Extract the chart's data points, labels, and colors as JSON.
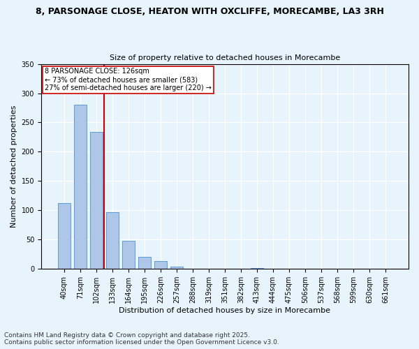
{
  "title": "8, PARSONAGE CLOSE, HEATON WITH OXCLIFFE, MORECAMBE, LA3 3RH",
  "subtitle": "Size of property relative to detached houses in Morecambe",
  "xlabel": "Distribution of detached houses by size in Morecambe",
  "ylabel": "Number of detached properties",
  "categories": [
    "40sqm",
    "71sqm",
    "102sqm",
    "133sqm",
    "164sqm",
    "195sqm",
    "226sqm",
    "257sqm",
    "288sqm",
    "319sqm",
    "351sqm",
    "382sqm",
    "413sqm",
    "444sqm",
    "475sqm",
    "506sqm",
    "537sqm",
    "568sqm",
    "599sqm",
    "630sqm",
    "661sqm"
  ],
  "values": [
    112,
    280,
    234,
    97,
    48,
    20,
    13,
    4,
    0,
    0,
    0,
    0,
    2,
    0,
    0,
    0,
    0,
    0,
    0,
    0,
    0
  ],
  "bar_color": "#aec6e8",
  "bar_edge_color": "#5b9bd5",
  "vline_x_index": 2,
  "vline_color": "#cc0000",
  "annotation_line1": "8 PARSONAGE CLOSE: 126sqm",
  "annotation_line2": "← 73% of detached houses are smaller (583)",
  "annotation_line3": "27% of semi-detached houses are larger (220) →",
  "annotation_box_color": "#ffffff",
  "annotation_box_edge_color": "#cc0000",
  "ylim": [
    0,
    350
  ],
  "yticks": [
    0,
    50,
    100,
    150,
    200,
    250,
    300,
    350
  ],
  "footer_text": "Contains HM Land Registry data © Crown copyright and database right 2025.\nContains public sector information licensed under the Open Government Licence v3.0.",
  "bg_color": "#e8f4fc",
  "plot_bg_color": "#e8f4fc",
  "title_fontsize": 9,
  "subtitle_fontsize": 8,
  "tick_fontsize": 7,
  "label_fontsize": 8,
  "annotation_fontsize": 7,
  "footer_fontsize": 6.5
}
